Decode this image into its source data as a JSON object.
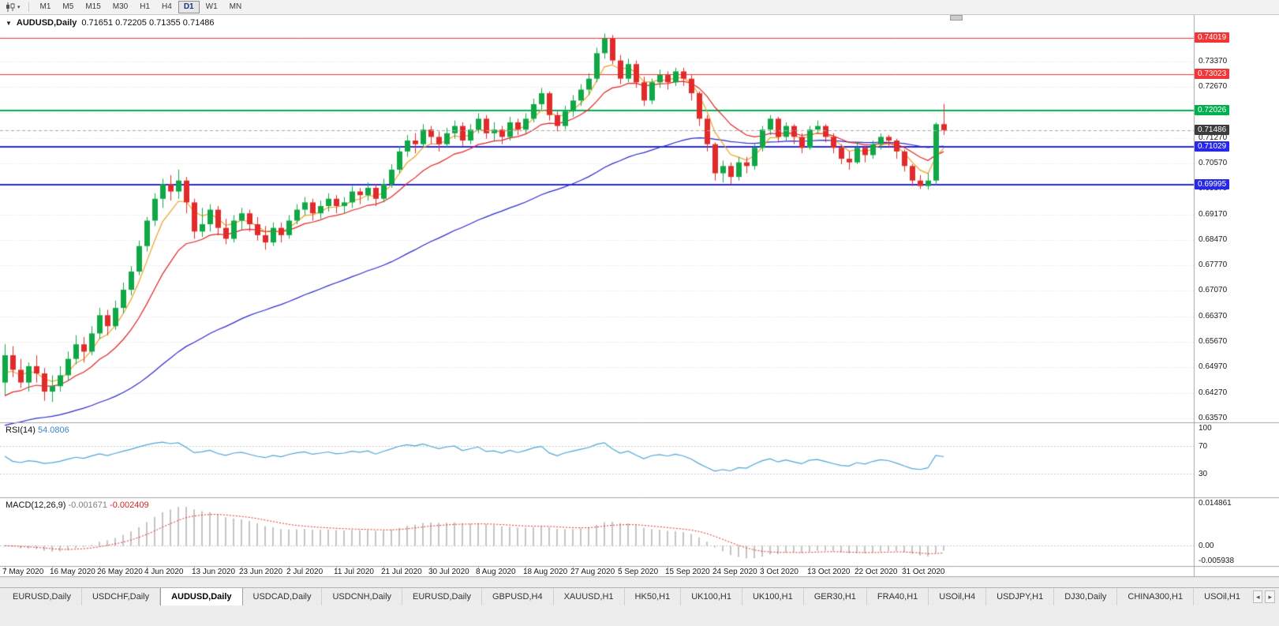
{
  "toolbar": {
    "timeframes": [
      "M1",
      "M5",
      "M15",
      "M30",
      "H1",
      "H4",
      "D1",
      "W1",
      "MN"
    ],
    "selected_timeframe": "D1"
  },
  "chart": {
    "symbol_title": "AUDUSD,Daily",
    "ohlc_text": "0.71651 0.72205 0.71355 0.71486"
  },
  "chart_data": {
    "type": "candlestick",
    "symbol": "AUDUSD",
    "timeframe": "Daily",
    "current": {
      "open": 0.71651,
      "high": 0.72205,
      "low": 0.71355,
      "close": 0.71486
    },
    "y_axis": {
      "min": 0.635,
      "max": 0.7465,
      "tick_step": 0.007,
      "labels": [
        "0.73370",
        "0.72670",
        "0.71970",
        "0.71270",
        "0.70570",
        "0.69870",
        "0.69170",
        "0.68470",
        "0.67770",
        "0.67070",
        "0.66370",
        "0.65670",
        "0.64970",
        "0.64270",
        "0.63570"
      ]
    },
    "x_labels": [
      "7 May 2020",
      "16 May 2020",
      "26 May 2020",
      "4 Jun 2020",
      "13 Jun 2020",
      "23 Jun 2020",
      "2 Jul 2020",
      "11 Jul 2020",
      "21 Jul 2020",
      "30 Jul 2020",
      "8 Aug 2020",
      "18 Aug 2020",
      "27 Aug 2020",
      "5 Sep 2020",
      "15 Sep 2020",
      "24 Sep 2020",
      "3 Oct 2020",
      "13 Oct 2020",
      "22 Oct 2020",
      "31 Oct 2020"
    ],
    "x_label_interval": 6,
    "bull_color": "#10a746",
    "bear_color": "#e12b2b",
    "candles": [
      [
        0.6455,
        0.656,
        0.642,
        0.653
      ],
      [
        0.653,
        0.6555,
        0.647,
        0.649
      ],
      [
        0.649,
        0.652,
        0.644,
        0.6455
      ],
      [
        0.6455,
        0.651,
        0.643,
        0.65
      ],
      [
        0.65,
        0.653,
        0.6455,
        0.648
      ],
      [
        0.648,
        0.6495,
        0.6405,
        0.643
      ],
      [
        0.643,
        0.6475,
        0.6402,
        0.6445
      ],
      [
        0.6445,
        0.65,
        0.643,
        0.6475
      ],
      [
        0.6475,
        0.654,
        0.646,
        0.652
      ],
      [
        0.652,
        0.6585,
        0.6505,
        0.656
      ],
      [
        0.656,
        0.658,
        0.651,
        0.654
      ],
      [
        0.654,
        0.661,
        0.653,
        0.659
      ],
      [
        0.659,
        0.666,
        0.6575,
        0.664
      ],
      [
        0.664,
        0.6655,
        0.6585,
        0.661
      ],
      [
        0.661,
        0.668,
        0.66,
        0.666
      ],
      [
        0.666,
        0.673,
        0.6645,
        0.671
      ],
      [
        0.671,
        0.6775,
        0.6695,
        0.676
      ],
      [
        0.676,
        0.6845,
        0.675,
        0.683
      ],
      [
        0.683,
        0.691,
        0.6815,
        0.69
      ],
      [
        0.69,
        0.6975,
        0.6885,
        0.696
      ],
      [
        0.696,
        0.7015,
        0.6935,
        0.7
      ],
      [
        0.7,
        0.7025,
        0.6955,
        0.698
      ],
      [
        0.698,
        0.704,
        0.696,
        0.701
      ],
      [
        0.701,
        0.702,
        0.692,
        0.695
      ],
      [
        0.695,
        0.696,
        0.685,
        0.687
      ],
      [
        0.687,
        0.6935,
        0.6855,
        0.689
      ],
      [
        0.689,
        0.6945,
        0.687,
        0.693
      ],
      [
        0.693,
        0.694,
        0.686,
        0.688
      ],
      [
        0.688,
        0.6905,
        0.6835,
        0.685
      ],
      [
        0.685,
        0.6915,
        0.684,
        0.69
      ],
      [
        0.69,
        0.6935,
        0.6875,
        0.692
      ],
      [
        0.692,
        0.693,
        0.687,
        0.689
      ],
      [
        0.689,
        0.691,
        0.6845,
        0.686
      ],
      [
        0.686,
        0.6885,
        0.682,
        0.684
      ],
      [
        0.684,
        0.6895,
        0.683,
        0.688
      ],
      [
        0.688,
        0.6895,
        0.684,
        0.686
      ],
      [
        0.686,
        0.6915,
        0.685,
        0.69
      ],
      [
        0.69,
        0.6945,
        0.689,
        0.693
      ],
      [
        0.693,
        0.6965,
        0.6915,
        0.695
      ],
      [
        0.695,
        0.696,
        0.69,
        0.692
      ],
      [
        0.692,
        0.6955,
        0.6905,
        0.694
      ],
      [
        0.694,
        0.6975,
        0.6925,
        0.696
      ],
      [
        0.696,
        0.697,
        0.692,
        0.694
      ],
      [
        0.694,
        0.6965,
        0.692,
        0.695
      ],
      [
        0.695,
        0.6995,
        0.6935,
        0.698
      ],
      [
        0.698,
        0.699,
        0.6945,
        0.697
      ],
      [
        0.697,
        0.7005,
        0.6955,
        0.699
      ],
      [
        0.699,
        0.7,
        0.694,
        0.696
      ],
      [
        0.696,
        0.7015,
        0.695,
        0.7
      ],
      [
        0.7,
        0.7055,
        0.699,
        0.704
      ],
      [
        0.704,
        0.7105,
        0.703,
        0.709
      ],
      [
        0.709,
        0.7135,
        0.7075,
        0.712
      ],
      [
        0.712,
        0.714,
        0.7085,
        0.711
      ],
      [
        0.711,
        0.7165,
        0.71,
        0.715
      ],
      [
        0.715,
        0.716,
        0.711,
        0.713
      ],
      [
        0.713,
        0.7145,
        0.709,
        0.711
      ],
      [
        0.711,
        0.7155,
        0.71,
        0.714
      ],
      [
        0.714,
        0.7175,
        0.7125,
        0.716
      ],
      [
        0.716,
        0.717,
        0.7105,
        0.712
      ],
      [
        0.712,
        0.7165,
        0.711,
        0.715
      ],
      [
        0.715,
        0.7195,
        0.714,
        0.718
      ],
      [
        0.718,
        0.719,
        0.7125,
        0.714
      ],
      [
        0.714,
        0.717,
        0.712,
        0.715
      ],
      [
        0.715,
        0.716,
        0.711,
        0.713
      ],
      [
        0.713,
        0.7185,
        0.712,
        0.717
      ],
      [
        0.717,
        0.718,
        0.7135,
        0.715
      ],
      [
        0.715,
        0.7195,
        0.714,
        0.718
      ],
      [
        0.718,
        0.7235,
        0.717,
        0.722
      ],
      [
        0.722,
        0.7265,
        0.7205,
        0.725
      ],
      [
        0.725,
        0.7255,
        0.7175,
        0.719
      ],
      [
        0.719,
        0.72,
        0.7145,
        0.716
      ],
      [
        0.716,
        0.7215,
        0.715,
        0.72
      ],
      [
        0.72,
        0.7245,
        0.7185,
        0.723
      ],
      [
        0.723,
        0.7275,
        0.7215,
        0.726
      ],
      [
        0.726,
        0.7305,
        0.7245,
        0.729
      ],
      [
        0.729,
        0.7375,
        0.728,
        0.736
      ],
      [
        0.736,
        0.7414,
        0.7345,
        0.74
      ],
      [
        0.74,
        0.741,
        0.733,
        0.734
      ],
      [
        0.734,
        0.7355,
        0.7275,
        0.729
      ],
      [
        0.729,
        0.7345,
        0.728,
        0.733
      ],
      [
        0.733,
        0.734,
        0.7265,
        0.728
      ],
      [
        0.728,
        0.7295,
        0.7215,
        0.723
      ],
      [
        0.723,
        0.729,
        0.722,
        0.728
      ],
      [
        0.728,
        0.7315,
        0.7265,
        0.73
      ],
      [
        0.73,
        0.731,
        0.726,
        0.728
      ],
      [
        0.728,
        0.732,
        0.727,
        0.731
      ],
      [
        0.731,
        0.732,
        0.727,
        0.729
      ],
      [
        0.729,
        0.73,
        0.723,
        0.725
      ],
      [
        0.725,
        0.7255,
        0.716,
        0.718
      ],
      [
        0.718,
        0.719,
        0.709,
        0.711
      ],
      [
        0.711,
        0.7115,
        0.701,
        0.703
      ],
      [
        0.703,
        0.7065,
        0.7005,
        0.705
      ],
      [
        0.705,
        0.706,
        0.7,
        0.702
      ],
      [
        0.702,
        0.7075,
        0.701,
        0.706
      ],
      [
        0.706,
        0.7075,
        0.703,
        0.705
      ],
      [
        0.705,
        0.711,
        0.704,
        0.71
      ],
      [
        0.71,
        0.716,
        0.709,
        0.715
      ],
      [
        0.715,
        0.719,
        0.7135,
        0.718
      ],
      [
        0.718,
        0.7185,
        0.7115,
        0.713
      ],
      [
        0.713,
        0.717,
        0.712,
        0.716
      ],
      [
        0.716,
        0.7165,
        0.711,
        0.713
      ],
      [
        0.713,
        0.714,
        0.7085,
        0.71
      ],
      [
        0.71,
        0.716,
        0.7095,
        0.715
      ],
      [
        0.715,
        0.7175,
        0.714,
        0.716
      ],
      [
        0.716,
        0.7165,
        0.7115,
        0.713
      ],
      [
        0.713,
        0.714,
        0.7085,
        0.71
      ],
      [
        0.71,
        0.711,
        0.7055,
        0.707
      ],
      [
        0.707,
        0.709,
        0.704,
        0.706
      ],
      [
        0.706,
        0.7115,
        0.7055,
        0.71
      ],
      [
        0.71,
        0.7105,
        0.706,
        0.708
      ],
      [
        0.708,
        0.712,
        0.707,
        0.711
      ],
      [
        0.711,
        0.714,
        0.7095,
        0.713
      ],
      [
        0.713,
        0.7135,
        0.71,
        0.712
      ],
      [
        0.712,
        0.7125,
        0.707,
        0.709
      ],
      [
        0.709,
        0.7095,
        0.7035,
        0.705
      ],
      [
        0.705,
        0.7055,
        0.6995,
        0.701
      ],
      [
        0.701,
        0.7025,
        0.6987,
        0.6995
      ],
      [
        0.6995,
        0.703,
        0.6985,
        0.701
      ],
      [
        0.701,
        0.717,
        0.6998,
        0.7165
      ],
      [
        0.71651,
        0.72205,
        0.71355,
        0.71486
      ]
    ],
    "moving_averages": [
      {
        "name": "ema-slow",
        "color": "#2a2ad2",
        "period": 55,
        "seed": 0.633
      },
      {
        "name": "ema-mid",
        "color": "#e32424",
        "period": 13,
        "seed": 0.64
      },
      {
        "name": "ema-fast",
        "color": "#eca223",
        "period": 5,
        "seed": 0.646
      }
    ],
    "hlines": [
      {
        "price": 0.74019,
        "label": "0.74019",
        "color": "#f03636",
        "width": 1
      },
      {
        "price": 0.73023,
        "label": "0.73023",
        "color": "#f03636",
        "width": 1
      },
      {
        "price": 0.72026,
        "label": "0.72026",
        "color": "#00b050",
        "width": 2
      },
      {
        "price": 0.71029,
        "label": "0.71029",
        "color": "#2828e8",
        "width": 2
      },
      {
        "price": 0.69995,
        "label": "0.69995",
        "color": "#2828e8",
        "width": 2
      }
    ],
    "bid": {
      "price": 0.71486,
      "label": "0.71486",
      "badge_color": "#3c3c3c"
    },
    "rsi": {
      "title": "RSI(14)",
      "value": "54.0806",
      "period": 14,
      "color": "#4fa7d5",
      "levels": [
        70,
        30
      ],
      "axis_labels": [
        100,
        70,
        30
      ]
    },
    "macd": {
      "title": "MACD(12,26,9)",
      "values": [
        "-0.001671",
        "-0.002409"
      ],
      "fast": 12,
      "slow": 26,
      "signal": 9,
      "histogram_color": "#c4c4c4",
      "signal_color": "#e03030",
      "scale_max": 0.014861,
      "scale_min": -0.005938,
      "axis_labels": [
        "0.014861",
        "0.00",
        "-0.005938"
      ]
    }
  },
  "tabs": {
    "items": [
      "EURUSD,Daily",
      "USDCHF,Daily",
      "AUDUSD,Daily",
      "USDCAD,Daily",
      "USDCNH,Daily",
      "EURUSD,Daily",
      "GBPUSD,H4",
      "XAUUSD,H1",
      "HK50,H1",
      "UK100,H1",
      "UK100,H1",
      "GER30,H1",
      "FRA40,H1",
      "USOil,H4",
      "USDJPY,H1",
      "DJ30,Daily",
      "CHINA300,H1",
      "USOil,H1"
    ],
    "active_index": 2,
    "scroll_left": "◂",
    "scroll_right": "▸"
  }
}
